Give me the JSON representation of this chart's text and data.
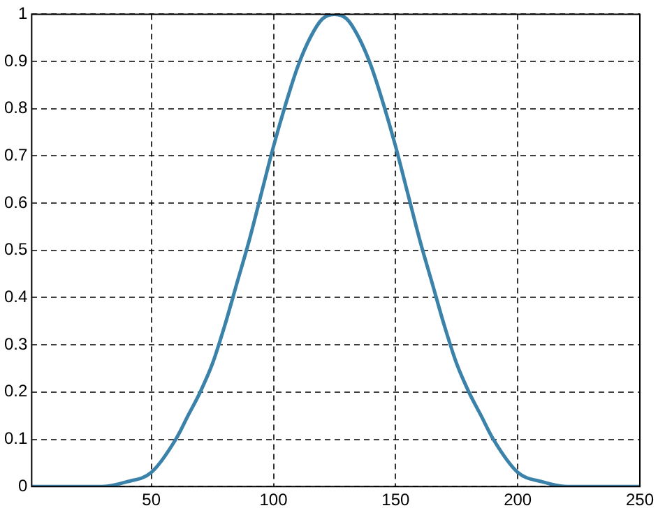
{
  "chart_data": {
    "type": "line",
    "x": [
      1,
      10,
      20,
      30,
      40,
      50,
      60,
      65,
      70,
      75,
      80,
      85,
      90,
      95,
      100,
      105,
      110,
      115,
      120,
      125,
      130,
      135,
      140,
      145,
      150,
      155,
      160,
      165,
      170,
      175,
      180,
      185,
      190,
      200,
      210,
      220,
      230,
      240,
      250
    ],
    "series": [
      {
        "color": "#3a82aa",
        "values": [
          0,
          0,
          0,
          0,
          0.01,
          0.03,
          0.1,
          0.15,
          0.2,
          0.26,
          0.34,
          0.43,
          0.52,
          0.62,
          0.72,
          0.81,
          0.89,
          0.95,
          0.99,
          1,
          0.99,
          0.95,
          0.89,
          0.81,
          0.72,
          0.62,
          0.52,
          0.43,
          0.34,
          0.26,
          0.2,
          0.15,
          0.1,
          0.03,
          0.01,
          0,
          0,
          0,
          0
        ]
      }
    ],
    "xlim": [
      1,
      250
    ],
    "xticks": [
      50,
      100,
      150,
      200,
      250
    ],
    "ylim": [
      0,
      1
    ],
    "yticks": [
      0,
      0.1,
      0.2,
      0.3,
      0.4,
      0.5,
      0.6,
      0.7,
      0.8,
      0.9,
      1
    ],
    "grid": true,
    "legend": false,
    "marker": "none",
    "line_style": "solid"
  }
}
